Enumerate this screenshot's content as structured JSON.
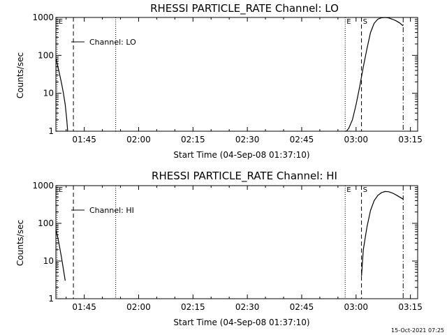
{
  "footer": {
    "timestamp": "15-Oct-2021 07:25"
  },
  "chart_data": [
    {
      "type": "line",
      "title": "RHESSI PARTICLE_RATE Channel: LO",
      "xlabel": "Start Time (04-Sep-08 01:37:10)",
      "ylabel": "Counts/sec",
      "yscale": "log",
      "ylim": [
        1,
        1000
      ],
      "xlim": [
        "01:37:10",
        "03:17:00"
      ],
      "xticks": [
        "01:45",
        "02:00",
        "02:15",
        "02:30",
        "02:45",
        "03:00",
        "03:15"
      ],
      "yticks": [
        "1",
        "10",
        "100",
        "1000"
      ],
      "legend": {
        "label": "Channel: LO",
        "placement": "top-left"
      },
      "markers": [
        {
          "label": "E",
          "time": "01:37:30",
          "style": "dotted"
        },
        {
          "label": "",
          "time": "01:42:00",
          "style": "dashed"
        },
        {
          "label": "",
          "time": "01:53:40",
          "style": "dotted"
        },
        {
          "label": "E",
          "time": "02:57:00",
          "style": "dotted"
        },
        {
          "label": "S",
          "time": "03:01:30",
          "style": "dashed"
        },
        {
          "label": "",
          "time": "03:13:00",
          "style": "dashdot"
        }
      ],
      "series": [
        {
          "name": "Channel: LO",
          "points": [
            [
              "01:37:15",
              80
            ],
            [
              "01:37:45",
              50
            ],
            [
              "01:38:15",
              30
            ],
            [
              "01:38:45",
              18
            ],
            [
              "01:39:15",
              10
            ],
            [
              "01:39:45",
              5
            ],
            [
              "01:40:10",
              2
            ],
            [
              "01:40:25",
              1
            ]
          ]
        },
        {
          "name": "Channel: LO",
          "points": [
            [
              "02:57:20",
              1
            ],
            [
              "02:58:00",
              1.2
            ],
            [
              "02:59:00",
              2
            ],
            [
              "03:00:00",
              5
            ],
            [
              "03:01:00",
              15
            ],
            [
              "03:02:00",
              50
            ],
            [
              "03:03:00",
              150
            ],
            [
              "03:04:00",
              400
            ],
            [
              "03:05:00",
              700
            ],
            [
              "03:06:00",
              900
            ],
            [
              "03:07:00",
              980
            ],
            [
              "03:08:00",
              1000
            ],
            [
              "03:09:00",
              970
            ],
            [
              "03:10:00",
              900
            ],
            [
              "03:11:00",
              820
            ],
            [
              "03:12:00",
              720
            ],
            [
              "03:13:00",
              600
            ]
          ]
        }
      ]
    },
    {
      "type": "line",
      "title": "RHESSI PARTICLE_RATE Channel: HI",
      "xlabel": "Start Time (04-Sep-08 01:37:10)",
      "ylabel": "Counts/sec",
      "yscale": "log",
      "ylim": [
        1,
        1000
      ],
      "xlim": [
        "01:37:10",
        "03:17:00"
      ],
      "xticks": [
        "01:45",
        "02:00",
        "02:15",
        "02:30",
        "02:45",
        "03:00",
        "03:15"
      ],
      "yticks": [
        "1",
        "10",
        "100",
        "1000"
      ],
      "legend": {
        "label": "Channel: HI",
        "placement": "top-left"
      },
      "markers": [
        {
          "label": "E",
          "time": "01:37:30",
          "style": "dotted"
        },
        {
          "label": "",
          "time": "01:42:00",
          "style": "dashed"
        },
        {
          "label": "",
          "time": "01:53:40",
          "style": "dotted"
        },
        {
          "label": "E",
          "time": "02:57:00",
          "style": "dotted"
        },
        {
          "label": "S",
          "time": "03:01:30",
          "style": "dashed"
        },
        {
          "label": "",
          "time": "03:13:00",
          "style": "dashdot"
        }
      ],
      "series": [
        {
          "name": "Channel: HI",
          "points": [
            [
              "01:37:15",
              65
            ],
            [
              "01:37:45",
              40
            ],
            [
              "01:38:15",
              22
            ],
            [
              "01:38:45",
              12
            ],
            [
              "01:39:15",
              6
            ],
            [
              "01:39:45",
              3
            ]
          ]
        },
        {
          "name": "Channel: HI",
          "points": [
            [
              "03:01:30",
              4
            ],
            [
              "03:02:00",
              20
            ],
            [
              "03:03:00",
              80
            ],
            [
              "03:04:00",
              220
            ],
            [
              "03:05:00",
              400
            ],
            [
              "03:06:00",
              550
            ],
            [
              "03:07:00",
              650
            ],
            [
              "03:08:00",
              700
            ],
            [
              "03:09:00",
              690
            ],
            [
              "03:10:00",
              640
            ],
            [
              "03:11:00",
              570
            ],
            [
              "03:12:00",
              500
            ],
            [
              "03:13:00",
              440
            ]
          ]
        }
      ]
    }
  ]
}
